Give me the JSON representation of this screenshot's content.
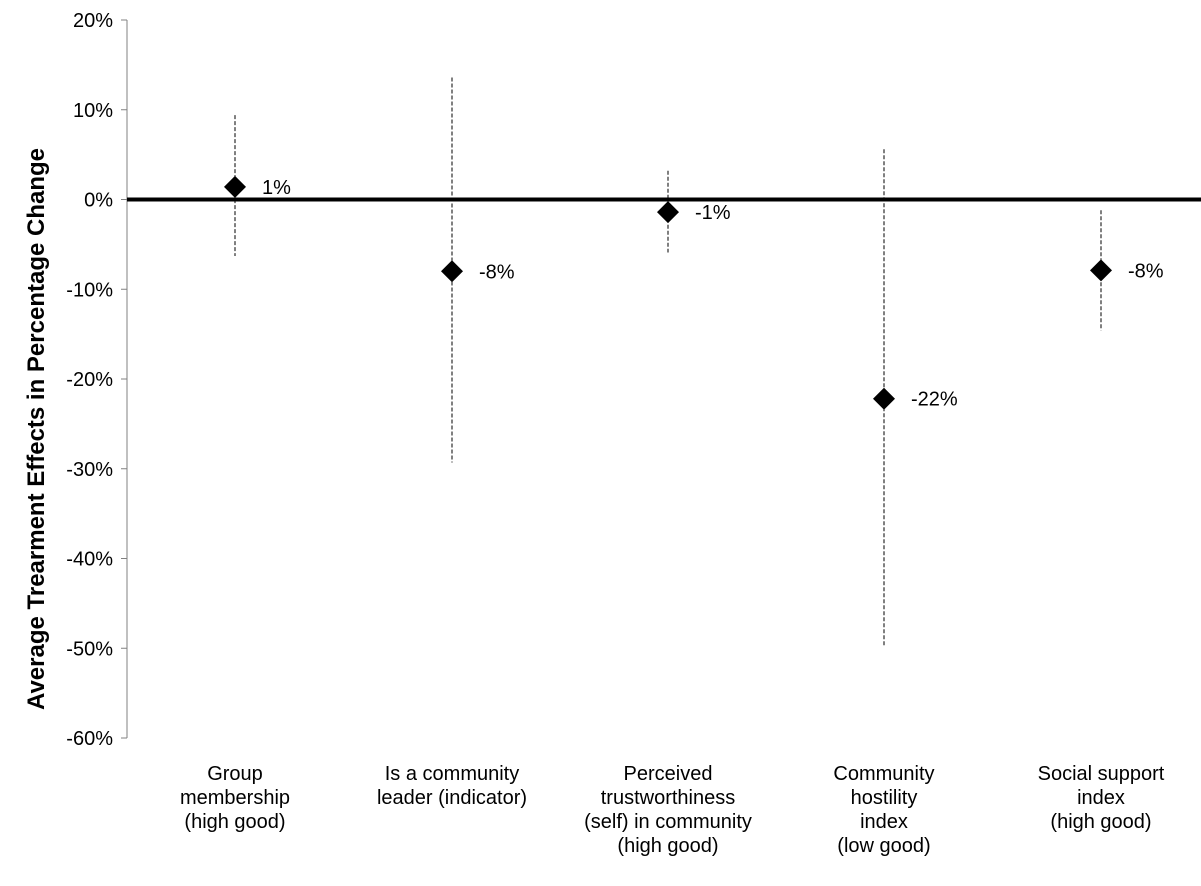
{
  "chart_data": {
    "type": "scatter",
    "title": "",
    "xlabel": "",
    "ylabel": "Average Trearment Effects in Percentage Change",
    "ylim": [
      -60,
      20
    ],
    "y_ticks": [
      "20%",
      "10%",
      "0%",
      "-10%",
      "-20%",
      "-30%",
      "-40%",
      "-50%",
      "-60%"
    ],
    "y_tick_values": [
      20,
      10,
      0,
      -10,
      -20,
      -30,
      -40,
      -50,
      -60
    ],
    "grid": false,
    "legend": "none",
    "reference_line": 0,
    "marker": "diamond",
    "marker_color": "#000000",
    "categories": [
      [
        "Group",
        "membership",
        "(high good)"
      ],
      [
        "Is a community",
        "leader (indicator)"
      ],
      [
        "Perceived",
        "trustworthiness",
        "(self) in community",
        "(high good)"
      ],
      [
        "Community",
        "hostility",
        "index",
        "(low good)"
      ],
      [
        "Social support",
        "index",
        "(high good)"
      ]
    ],
    "values": [
      1.4,
      -8,
      -1.4,
      -22.2,
      -7.9
    ],
    "ci_low": [
      -6.3,
      -29.3,
      -5.9,
      -49.8,
      -14.6
    ],
    "ci_high": [
      9.4,
      13.6,
      3.2,
      5.6,
      -1.2
    ],
    "data_labels": [
      "1%",
      "-8%",
      "-1%",
      "-22%",
      "-8%"
    ]
  }
}
